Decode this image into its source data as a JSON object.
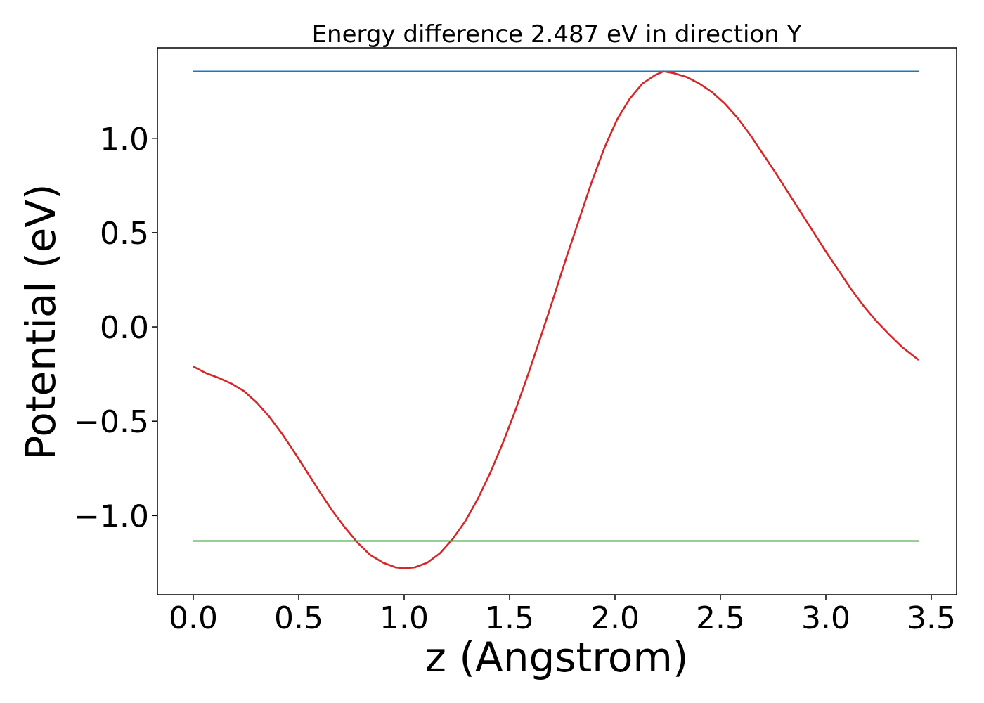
{
  "chart_data": {
    "type": "line",
    "title": "Energy difference 2.487 eV in direction Y",
    "xlabel": "z (Angstrom)",
    "ylabel": "Potential (eV)",
    "xlim": [
      -0.17,
      3.62
    ],
    "ylim": [
      -1.42,
      1.48
    ],
    "xticks": [
      0.0,
      0.5,
      1.0,
      1.5,
      2.0,
      2.5,
      3.0,
      3.5
    ],
    "xtick_labels": [
      "0.0",
      "0.5",
      "1.0",
      "1.5",
      "2.0",
      "2.5",
      "3.0",
      "3.5"
    ],
    "yticks": [
      -1.0,
      -0.5,
      0.0,
      0.5,
      1.0
    ],
    "ytick_labels": [
      "−1.0",
      "−0.5",
      "0.0",
      "0.5",
      "1.0"
    ],
    "grid": false,
    "series": [
      {
        "color": "#d62728",
        "x": [
          0.0,
          0.06,
          0.12,
          0.18,
          0.24,
          0.3,
          0.36,
          0.42,
          0.48,
          0.54,
          0.6,
          0.66,
          0.72,
          0.78,
          0.84,
          0.9,
          0.96,
          1.0,
          1.05,
          1.11,
          1.17,
          1.23,
          1.29,
          1.35,
          1.41,
          1.47,
          1.53,
          1.59,
          1.65,
          1.71,
          1.77,
          1.83,
          1.89,
          1.95,
          2.01,
          2.07,
          2.13,
          2.19,
          2.23,
          2.28,
          2.34,
          2.4,
          2.46,
          2.52,
          2.58,
          2.64,
          2.7,
          2.76,
          2.82,
          2.88,
          2.94,
          3.0,
          3.06,
          3.12,
          3.18,
          3.24,
          3.3,
          3.36,
          3.44
        ],
        "values": [
          -0.21,
          -0.245,
          -0.27,
          -0.3,
          -0.34,
          -0.4,
          -0.475,
          -0.565,
          -0.665,
          -0.77,
          -0.875,
          -0.975,
          -1.065,
          -1.145,
          -1.21,
          -1.25,
          -1.275,
          -1.28,
          -1.275,
          -1.25,
          -1.2,
          -1.125,
          -1.03,
          -0.91,
          -0.77,
          -0.61,
          -0.435,
          -0.245,
          -0.045,
          0.16,
          0.37,
          0.57,
          0.77,
          0.95,
          1.1,
          1.21,
          1.29,
          1.335,
          1.355,
          1.345,
          1.325,
          1.29,
          1.245,
          1.185,
          1.11,
          1.02,
          0.92,
          0.82,
          0.715,
          0.61,
          0.505,
          0.4,
          0.3,
          0.2,
          0.11,
          0.03,
          -0.04,
          -0.105,
          -0.175
        ]
      },
      {
        "color": "#1f77b4",
        "x": [
          0.0,
          3.44
        ],
        "values": [
          1.355,
          1.355
        ]
      },
      {
        "color": "#2ca02c",
        "x": [
          0.0,
          3.44
        ],
        "values": [
          -1.135,
          -1.135
        ]
      }
    ]
  }
}
